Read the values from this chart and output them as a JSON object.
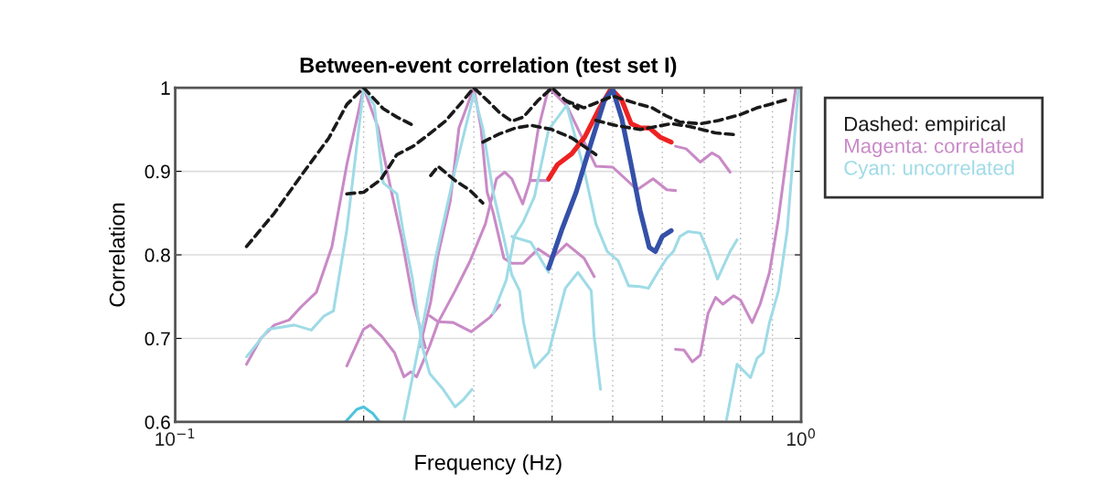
{
  "chart_data": {
    "type": "line",
    "title": "Between-event correlation (test set I)",
    "xlabel": "Frequency (Hz)",
    "ylabel": "Correlation",
    "log": "x",
    "grid": true,
    "legend": "right",
    "xlim": [
      0.1,
      1
    ],
    "ylim": [
      0.6,
      1
    ],
    "xticks": [
      {
        "value": 0.1,
        "label": "10$^{−1}$"
      },
      {
        "value": 0.2,
        "label": null
      },
      {
        "value": 0.3,
        "label": null
      },
      {
        "value": 0.4,
        "label": null
      },
      {
        "value": 0.5,
        "label": null
      },
      {
        "value": 0.6,
        "label": null
      },
      {
        "value": 0.7,
        "label": null
      },
      {
        "value": 0.8,
        "label": null
      },
      {
        "value": 0.9,
        "label": null
      },
      {
        "value": 1,
        "label": "10$^{0}$"
      }
    ],
    "yticks": [
      0.6,
      0.7,
      0.8,
      0.9,
      1
    ],
    "series": [
      {
        "name": "Dashed: empirical",
        "color": "#1a1a1a",
        "line_style": "dashed",
        "x": [
          0.13,
          0.144,
          0.159,
          0.176,
          0.188,
          0.2,
          0.215,
          0.226,
          0.24
        ],
        "values": [
          0.81,
          0.85,
          0.895,
          0.94,
          0.98,
          1.0,
          0.975,
          0.965,
          0.955
        ]
      },
      {
        "color": "#1a1a1a",
        "line_style": "dashed",
        "x": [
          0.188,
          0.2,
          0.213,
          0.226,
          0.24,
          0.255,
          0.27,
          0.285,
          0.3,
          0.315,
          0.33,
          0.345,
          0.36,
          0.38,
          0.4,
          0.42,
          0.44
        ],
        "values": [
          0.873,
          0.875,
          0.89,
          0.92,
          0.93,
          0.945,
          0.96,
          0.98,
          1.0,
          0.985,
          0.97,
          0.96,
          0.965,
          0.985,
          1.0,
          0.985,
          0.975
        ]
      },
      {
        "color": "#1a1a1a",
        "line_style": "dashed",
        "x": [
          0.256,
          0.263,
          0.28,
          0.296,
          0.31
        ],
        "values": [
          0.895,
          0.906,
          0.889,
          0.877,
          0.862
        ]
      },
      {
        "color": "#1a1a1a",
        "line_style": "dashed",
        "x": [
          0.31,
          0.33,
          0.35,
          0.37,
          0.4,
          0.43,
          0.45,
          0.47
        ],
        "values": [
          0.935,
          0.945,
          0.952,
          0.955,
          0.95,
          0.94,
          0.93,
          0.92
        ]
      },
      {
        "color": "#1a1a1a",
        "line_style": "dashed",
        "x": [
          0.42,
          0.45,
          0.5,
          0.547,
          0.578,
          0.61,
          0.64,
          0.69,
          0.74,
          0.8,
          0.85,
          0.9,
          0.96
        ],
        "values": [
          0.985,
          0.976,
          0.99,
          0.981,
          0.976,
          0.966,
          0.959,
          0.957,
          0.961,
          0.968,
          0.976,
          0.981,
          0.987
        ]
      },
      {
        "color": "#1a1a1a",
        "line_style": "dashed",
        "x": [
          0.47,
          0.505,
          0.553,
          0.62,
          0.66,
          0.73,
          0.78
        ],
        "values": [
          0.961,
          0.955,
          0.95,
          0.957,
          0.954,
          0.946,
          0.944
        ]
      },
      {
        "name": "Magenta: correlated",
        "color": "#c98ac6",
        "x": [
          0.13,
          0.137,
          0.144,
          0.152,
          0.159,
          0.168,
          0.178,
          0.188,
          0.2,
          0.211,
          0.22,
          0.23,
          0.24,
          0.251
        ],
        "values": [
          0.669,
          0.7,
          0.716,
          0.722,
          0.738,
          0.755,
          0.81,
          0.908,
          1.0,
          0.952,
          0.886,
          0.82,
          0.744,
          0.689
        ]
      },
      {
        "color": "#c98ac6",
        "x": [
          0.246,
          0.256,
          0.263,
          0.275,
          0.284,
          0.3,
          0.308,
          0.315,
          0.322,
          0.335,
          0.345,
          0.36,
          0.38,
          0.4,
          0.422,
          0.45,
          0.467
        ],
        "values": [
          0.69,
          0.744,
          0.8,
          0.864,
          0.952,
          1.0,
          0.952,
          0.875,
          0.851,
          0.796,
          0.79,
          0.79,
          0.807,
          0.796,
          0.813,
          0.796,
          0.774
        ]
      },
      {
        "color": "#c98ac6",
        "x": [
          0.188,
          0.2,
          0.205,
          0.214,
          0.224,
          0.232,
          0.238,
          0.243,
          0.255,
          0.263,
          0.28,
          0.296,
          0.313,
          0.326,
          0.336,
          0.345,
          0.359,
          0.369,
          0.395
        ],
        "values": [
          0.667,
          0.711,
          0.716,
          0.702,
          0.683,
          0.654,
          0.66,
          0.654,
          0.691,
          0.719,
          0.757,
          0.793,
          0.837,
          0.891,
          0.899,
          0.891,
          0.861,
          0.889,
          0.889
        ]
      },
      {
        "color": "#c98ac6",
        "x": [
          0.255,
          0.263,
          0.278,
          0.297,
          0.318,
          0.33
        ],
        "values": [
          0.727,
          0.72,
          0.719,
          0.708,
          0.725,
          0.74
        ]
      },
      {
        "color": "#c98ac6",
        "x": [
          0.369,
          0.38,
          0.395,
          0.422,
          0.47,
          0.5,
          0.547,
          0.58,
          0.61,
          0.63
        ],
        "values": [
          0.89,
          0.95,
          1.0,
          0.979,
          0.906,
          0.905,
          0.878,
          0.891,
          0.878,
          0.877
        ]
      },
      {
        "color": "#c98ac6",
        "x": [
          0.63,
          0.655,
          0.69,
          0.72,
          0.74,
          0.77
        ],
        "values": [
          0.93,
          0.927,
          0.911,
          0.922,
          0.917,
          0.899
        ]
      },
      {
        "color": "#c98ac6",
        "x": [
          0.63,
          0.65,
          0.67,
          0.69,
          0.71,
          0.73,
          0.75,
          0.78,
          0.8,
          0.835,
          0.86,
          0.89,
          0.92,
          0.98
        ],
        "values": [
          0.687,
          0.686,
          0.672,
          0.68,
          0.73,
          0.749,
          0.741,
          0.751,
          0.746,
          0.719,
          0.741,
          0.779,
          0.844,
          1.0
        ]
      },
      {
        "name": "Cyan: uncorrelated",
        "color": "#9fdbe6",
        "x": [
          0.13,
          0.141,
          0.155,
          0.165,
          0.173,
          0.179,
          0.188,
          0.2,
          0.208,
          0.215,
          0.226,
          0.232,
          0.239,
          0.248,
          0.255,
          0.268,
          0.28,
          0.288,
          0.298
        ],
        "values": [
          0.678,
          0.711,
          0.716,
          0.71,
          0.727,
          0.733,
          0.83,
          1.0,
          0.979,
          0.886,
          0.873,
          0.822,
          0.774,
          0.691,
          0.658,
          0.639,
          0.618,
          0.626,
          0.639
        ]
      },
      {
        "color": "#9fdbe6",
        "x": [
          0.232,
          0.245,
          0.26,
          0.28,
          0.3,
          0.31,
          0.322,
          0.335,
          0.345,
          0.355,
          0.36,
          0.369,
          0.375,
          0.395,
          0.42,
          0.44,
          0.462,
          0.467,
          0.478
        ],
        "values": [
          0.603,
          0.691,
          0.793,
          0.902,
          0.993,
          0.952,
          0.875,
          0.82,
          0.776,
          0.757,
          0.72,
          0.683,
          0.665,
          0.683,
          0.76,
          0.779,
          0.757,
          0.702,
          0.639
        ]
      },
      {
        "color": "#9fdbe6",
        "x": [
          0.322,
          0.338,
          0.348,
          0.36,
          0.375,
          0.395,
          0.422,
          0.45,
          0.47,
          0.49,
          0.51,
          0.53,
          0.553,
          0.57,
          0.59,
          0.61,
          0.625,
          0.64,
          0.66,
          0.69,
          0.71,
          0.735,
          0.77,
          0.79
        ],
        "values": [
          0.73,
          0.77,
          0.822,
          0.84,
          0.87,
          0.95,
          0.979,
          0.902,
          0.837,
          0.804,
          0.793,
          0.763,
          0.762,
          0.76,
          0.779,
          0.796,
          0.804,
          0.822,
          0.828,
          0.826,
          0.804,
          0.771,
          0.804,
          0.818
        ]
      },
      {
        "color": "#9fdbe6",
        "x": [
          0.345,
          0.37,
          0.385,
          0.395
        ],
        "values": [
          0.822,
          0.815,
          0.793,
          0.779
        ]
      },
      {
        "color": "#9fdbe6",
        "x": [
          0.76,
          0.78,
          0.79,
          0.83,
          0.85,
          0.87,
          0.89,
          0.92,
          0.95,
          0.99
        ],
        "values": [
          0.603,
          0.647,
          0.669,
          0.653,
          0.676,
          0.683,
          0.719,
          0.757,
          0.829,
          1.0
        ]
      },
      {
        "color": "#4ec3dc",
        "x": [
          0.187,
          0.195,
          0.2,
          0.207,
          0.212
        ],
        "values": [
          0.6,
          0.615,
          0.618,
          0.61,
          0.6
        ]
      },
      {
        "color": "#ee2222",
        "x": [
          0.395,
          0.408,
          0.43,
          0.451,
          0.475,
          0.497,
          0.517,
          0.535,
          0.553,
          0.572,
          0.595,
          0.62
        ],
        "values": [
          0.891,
          0.908,
          0.921,
          0.941,
          0.974,
          0.999,
          0.985,
          0.957,
          0.952,
          0.952,
          0.941,
          0.935
        ]
      },
      {
        "color": "#3450a8",
        "x": [
          0.395,
          0.415,
          0.437,
          0.46,
          0.485,
          0.5,
          0.517,
          0.535,
          0.553,
          0.572,
          0.585,
          0.6,
          0.62
        ],
        "values": [
          0.784,
          0.831,
          0.875,
          0.93,
          0.985,
          0.998,
          0.963,
          0.908,
          0.853,
          0.809,
          0.804,
          0.822,
          0.829
        ]
      }
    ]
  }
}
